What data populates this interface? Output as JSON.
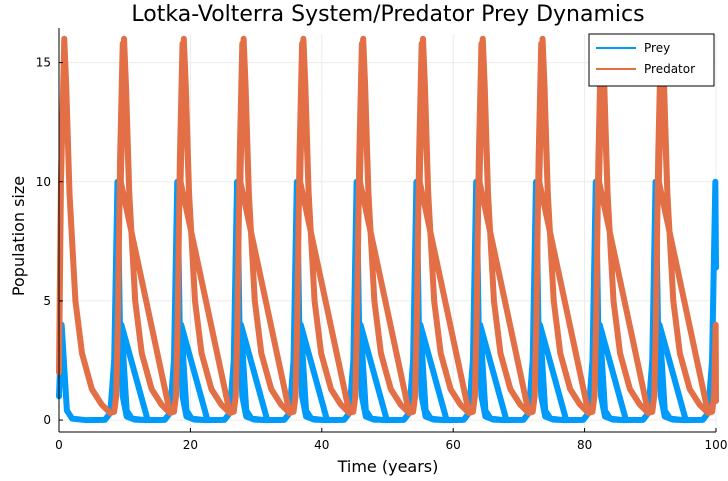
{
  "colors": {
    "prey": "#009AFA",
    "predator": "#E26F46",
    "grid": "#EBEBEB",
    "axis": "#000000"
  },
  "chart_data": {
    "type": "line",
    "title": "Lotka-Volterra System/Predator Prey Dynamics",
    "xlabel": "Time (years)",
    "ylabel": "Population size",
    "xlim": [
      0,
      100
    ],
    "ylim": [
      -0.5,
      16.2
    ],
    "xticks": [
      0,
      20,
      40,
      60,
      80,
      100
    ],
    "yticks": [
      0,
      5,
      10,
      15
    ],
    "grid": true,
    "legend": "top-right",
    "series": [
      {
        "name": "Prey",
        "color": "#009AFA",
        "period": 9.1,
        "phase": 0,
        "points": [
          [
            0,
            1
          ],
          [
            0.4,
            4
          ],
          [
            1.2,
            0.4
          ],
          [
            2,
            0.06
          ],
          [
            4,
            0
          ],
          [
            7,
            0.01
          ],
          [
            7.8,
            0.3
          ],
          [
            8.4,
            2.5
          ],
          [
            8.7,
            7
          ],
          [
            8.9,
            10
          ],
          [
            9.1,
            7
          ],
          [
            9.3,
            3.5
          ],
          [
            9.7,
            1
          ],
          [
            10.3,
            0.15
          ],
          [
            11.5,
            0.02
          ],
          [
            13.5,
            0
          ]
        ],
        "end_value": 6.4
      },
      {
        "name": "Predator",
        "color": "#E26F46",
        "period": 9.1,
        "phase": 0,
        "points": [
          [
            0,
            2
          ],
          [
            0.3,
            10
          ],
          [
            0.8,
            16
          ],
          [
            1.1,
            14
          ],
          [
            1.6,
            9.5
          ],
          [
            2.5,
            5
          ],
          [
            3.5,
            2.8
          ],
          [
            5,
            1.3
          ],
          [
            6.5,
            0.65
          ],
          [
            7.8,
            0.3
          ],
          [
            8.4,
            0.35
          ],
          [
            8.7,
            1
          ],
          [
            8.95,
            4
          ],
          [
            9.3,
            11
          ],
          [
            9.7,
            15.8
          ],
          [
            10.1,
            14
          ],
          [
            10.7,
            9.5
          ],
          [
            11.6,
            5
          ],
          [
            12.6,
            2.8
          ],
          [
            14.1,
            1.3
          ],
          [
            15.6,
            0.65
          ],
          [
            16.9,
            0.3
          ]
        ],
        "end_value": 0.8
      }
    ]
  }
}
